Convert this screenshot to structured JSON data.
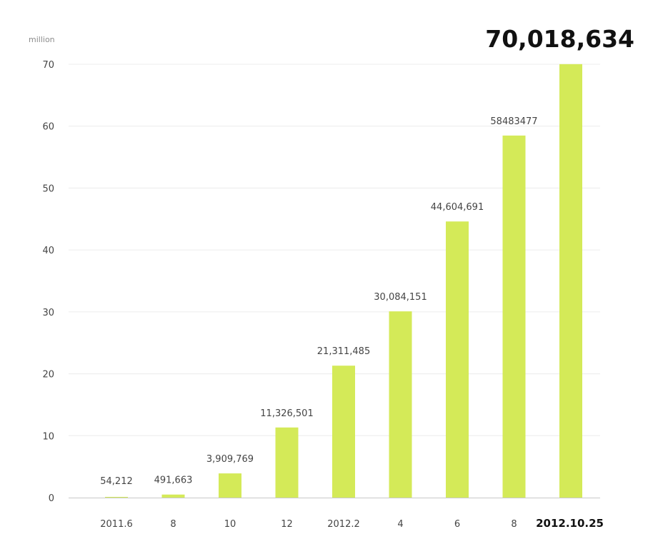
{
  "chart_data": {
    "type": "bar",
    "y_unit": "million",
    "ylim": [
      0,
      70
    ],
    "yticks": [
      0,
      10,
      20,
      30,
      40,
      50,
      60,
      70
    ],
    "grid": true,
    "bar_color": "#d4ea58",
    "categories": [
      "2011.6",
      "8",
      "10",
      "12",
      "2012.2",
      "4",
      "6",
      "8",
      "2012.10.25"
    ],
    "values": [
      0.054212,
      0.491663,
      3.909769,
      11.326501,
      21.311485,
      30.084151,
      44.604691,
      58.483477,
      70.018634
    ],
    "data_labels": [
      "54,212",
      "491,663",
      "3,909,769",
      "11,326,501",
      "21,311,485",
      "30,084,151",
      "44,604,691",
      "58483477",
      "70,018,634"
    ],
    "highlight_index": 8
  }
}
